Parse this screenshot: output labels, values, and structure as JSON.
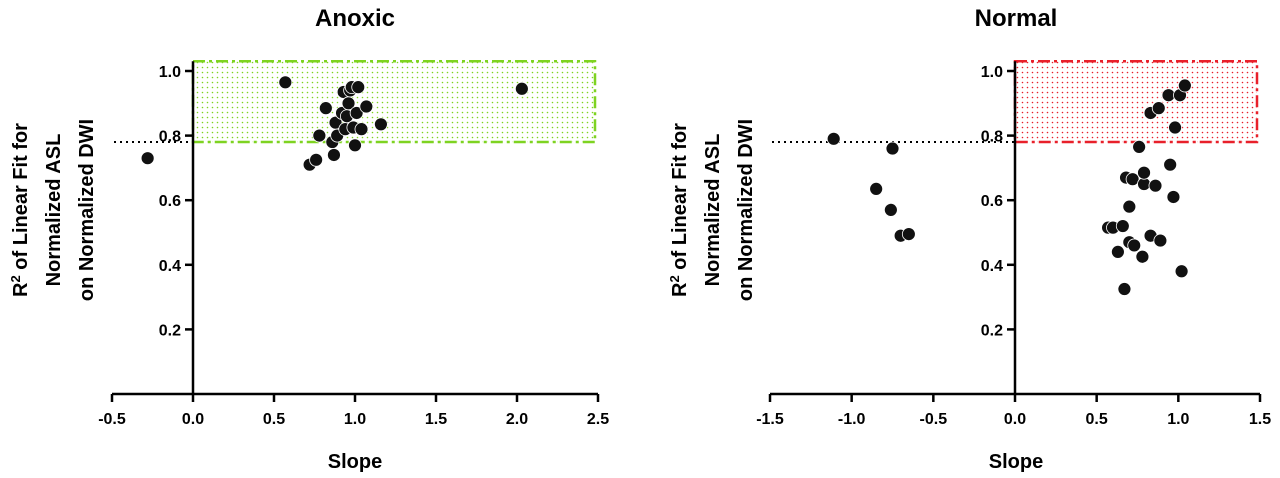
{
  "chart_data": [
    {
      "type": "scatter",
      "title": "Anoxic",
      "xlabel": "Slope",
      "ylabel_line1_base": "R",
      "ylabel_line1_sup": "2",
      "ylabel_line1_rest": " of Linear Fit for",
      "ylabel_line2": "Normalized ASL",
      "ylabel_line3": "on Normalized DWI",
      "xlim": [
        -0.5,
        2.5
      ],
      "ylim": [
        0.0,
        1.0
      ],
      "x_ticks": [
        -0.5,
        0.0,
        0.5,
        1.0,
        1.5,
        2.0,
        2.5
      ],
      "x_tick_labels": [
        "-0.5",
        "0.0",
        "0.5",
        "1.0",
        "1.5",
        "2.0",
        "2.5"
      ],
      "y_ticks": [
        0.2,
        0.4,
        0.6,
        0.8,
        1.0
      ],
      "y_tick_labels": [
        "0.2",
        "0.4",
        "0.6",
        "0.8",
        "1.0"
      ],
      "threshold": 0.78,
      "threshold_box": {
        "x": [
          0.0,
          2.5
        ],
        "y": [
          0.78,
          1.03
        ],
        "color": "#7ed321",
        "style": "dash-dot, dotted fill"
      },
      "grid": false,
      "points": [
        {
          "x": -0.28,
          "y": 0.73
        },
        {
          "x": 0.57,
          "y": 0.965
        },
        {
          "x": 0.72,
          "y": 0.71
        },
        {
          "x": 0.76,
          "y": 0.725
        },
        {
          "x": 0.78,
          "y": 0.8
        },
        {
          "x": 0.82,
          "y": 0.885
        },
        {
          "x": 0.86,
          "y": 0.78
        },
        {
          "x": 0.87,
          "y": 0.74
        },
        {
          "x": 0.88,
          "y": 0.84
        },
        {
          "x": 0.89,
          "y": 0.8
        },
        {
          "x": 0.92,
          "y": 0.87
        },
        {
          "x": 0.93,
          "y": 0.935
        },
        {
          "x": 0.94,
          "y": 0.82
        },
        {
          "x": 0.95,
          "y": 0.86
        },
        {
          "x": 0.96,
          "y": 0.9
        },
        {
          "x": 0.97,
          "y": 0.94
        },
        {
          "x": 0.98,
          "y": 0.95
        },
        {
          "x": 0.99,
          "y": 0.825
        },
        {
          "x": 1.0,
          "y": 0.77
        },
        {
          "x": 1.01,
          "y": 0.87
        },
        {
          "x": 1.02,
          "y": 0.95
        },
        {
          "x": 1.04,
          "y": 0.82
        },
        {
          "x": 1.07,
          "y": 0.89
        },
        {
          "x": 1.16,
          "y": 0.835
        },
        {
          "x": 2.03,
          "y": 0.945
        }
      ]
    },
    {
      "type": "scatter",
      "title": "Normal",
      "xlabel": "Slope",
      "ylabel_line1_base": "R",
      "ylabel_line1_sup": "2",
      "ylabel_line1_rest": " of Linear Fit for",
      "ylabel_line2": "Normalized ASL",
      "ylabel_line3": "on Normalized DWI",
      "xlim": [
        -1.5,
        1.5
      ],
      "ylim": [
        0.0,
        1.0
      ],
      "x_ticks": [
        -1.5,
        -1.0,
        -0.5,
        0.0,
        0.5,
        1.0,
        1.5
      ],
      "x_tick_labels": [
        "-1.5",
        "-1.0",
        "-0.5",
        "0.0",
        "0.5",
        "1.0",
        "1.5"
      ],
      "y_ticks": [
        0.2,
        0.4,
        0.6,
        0.8,
        1.0
      ],
      "y_tick_labels": [
        "0.2",
        "0.4",
        "0.6",
        "0.8",
        "1.0"
      ],
      "threshold": 0.78,
      "threshold_box": {
        "x": [
          0.0,
          1.5
        ],
        "y": [
          0.78,
          1.03
        ],
        "color": "#e8202a",
        "style": "dash-dot, dotted fill"
      },
      "grid": false,
      "points": [
        {
          "x": -1.11,
          "y": 0.79
        },
        {
          "x": -0.85,
          "y": 0.635
        },
        {
          "x": -0.76,
          "y": 0.57
        },
        {
          "x": -0.75,
          "y": 0.76
        },
        {
          "x": -0.7,
          "y": 0.49
        },
        {
          "x": -0.65,
          "y": 0.495
        },
        {
          "x": 0.57,
          "y": 0.515
        },
        {
          "x": 0.6,
          "y": 0.515
        },
        {
          "x": 0.63,
          "y": 0.44
        },
        {
          "x": 0.66,
          "y": 0.52
        },
        {
          "x": 0.67,
          "y": 0.325
        },
        {
          "x": 0.68,
          "y": 0.67
        },
        {
          "x": 0.7,
          "y": 0.47
        },
        {
          "x": 0.7,
          "y": 0.58
        },
        {
          "x": 0.72,
          "y": 0.665
        },
        {
          "x": 0.73,
          "y": 0.46
        },
        {
          "x": 0.76,
          "y": 0.765
        },
        {
          "x": 0.78,
          "y": 0.425
        },
        {
          "x": 0.79,
          "y": 0.65
        },
        {
          "x": 0.79,
          "y": 0.685
        },
        {
          "x": 0.83,
          "y": 0.87
        },
        {
          "x": 0.83,
          "y": 0.49
        },
        {
          "x": 0.86,
          "y": 0.645
        },
        {
          "x": 0.88,
          "y": 0.885
        },
        {
          "x": 0.89,
          "y": 0.475
        },
        {
          "x": 0.94,
          "y": 0.925
        },
        {
          "x": 0.95,
          "y": 0.71
        },
        {
          "x": 0.97,
          "y": 0.61
        },
        {
          "x": 0.98,
          "y": 0.825
        },
        {
          "x": 1.01,
          "y": 0.925
        },
        {
          "x": 1.02,
          "y": 0.38
        },
        {
          "x": 1.04,
          "y": 0.955
        }
      ]
    }
  ]
}
